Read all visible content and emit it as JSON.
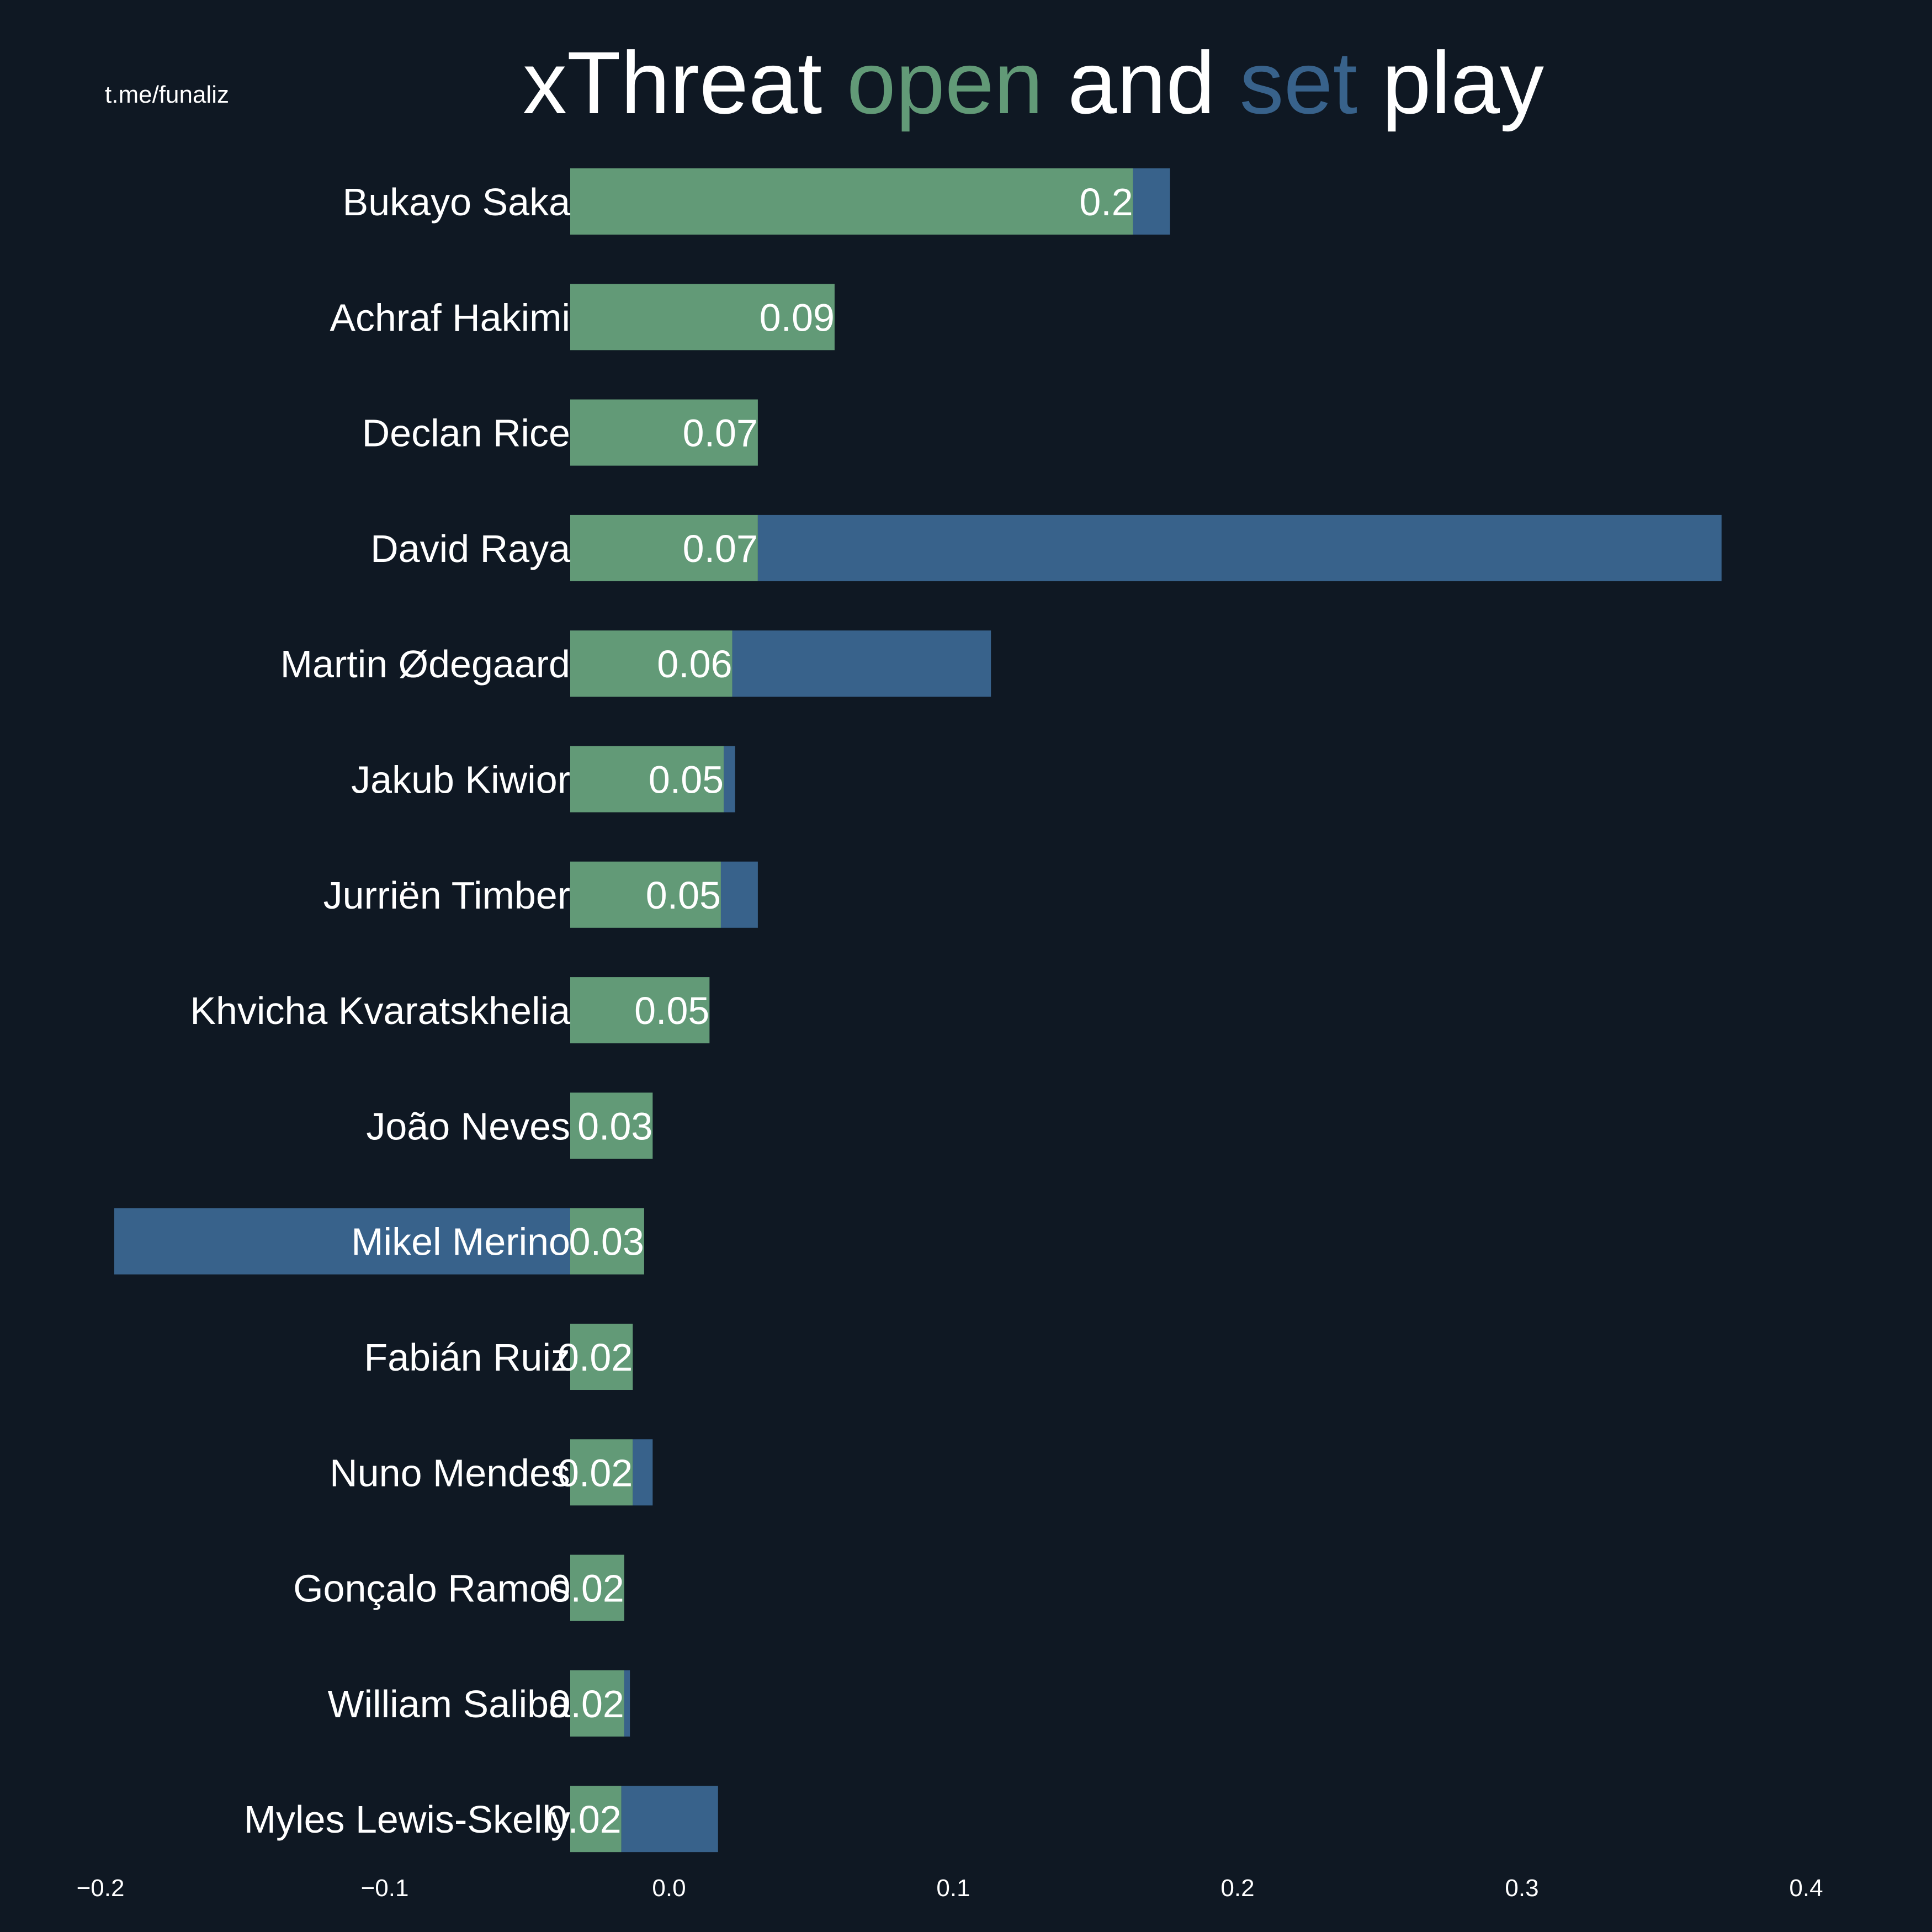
{
  "watermark": "t.me/funaliz",
  "title": {
    "parts": [
      {
        "text": "xThreat ",
        "color": "#ffffff"
      },
      {
        "text": "open",
        "color": "#629a77"
      },
      {
        "text": " and ",
        "color": "#ffffff"
      },
      {
        "text": "set",
        "color": "#38628b"
      },
      {
        "text": " play",
        "color": "#ffffff"
      }
    ]
  },
  "colors": {
    "background": "#0f1823",
    "open_play": "#629a77",
    "set_play": "#38628b",
    "text": "#ffffff"
  },
  "chart_data": {
    "type": "bar",
    "orientation": "horizontal",
    "stacked": true,
    "title": "xThreat open and set play",
    "categories": [
      "Bukayo Saka",
      "Achraf Hakimi",
      "Declan Rice",
      "David Raya",
      "Martin Ødegaard",
      "Jakub Kiwior",
      "Jurriën Timber",
      "Khvicha Kvaratskhelia",
      "João Neves",
      "Mikel Merino",
      "Fabián Ruiz",
      "Nuno Mendes",
      "Gonçalo Ramos",
      "William Saliba",
      "Myles Lewis-Skelly"
    ],
    "series": [
      {
        "name": "open",
        "values": [
          0.198,
          0.093,
          0.066,
          0.066,
          0.057,
          0.054,
          0.053,
          0.049,
          0.029,
          0.026,
          0.022,
          0.022,
          0.019,
          0.019,
          0.018
        ]
      },
      {
        "name": "set",
        "values": [
          0.013,
          0.0,
          0.0,
          0.339,
          0.091,
          0.004,
          0.013,
          0.0,
          0.0,
          -0.221,
          0.0,
          0.007,
          0.0,
          0.002,
          0.034
        ]
      }
    ],
    "data_labels": [
      "0.2",
      "0.09",
      "0.07",
      "0.07",
      "0.06",
      "0.05",
      "0.05",
      "0.05",
      "0.03",
      "0.03",
      "0.02",
      "0.02",
      "0.02",
      "0.02",
      "0.02"
    ],
    "xlim": [
      -0.2,
      0.4
    ],
    "xticks": [
      -0.2,
      -0.1,
      0.0,
      0.1,
      0.2,
      0.3,
      0.4
    ],
    "xtick_labels": [
      "−0.2",
      "−0.1",
      "0.0",
      "0.1",
      "0.2",
      "0.3",
      "0.4"
    ],
    "xlabel": "",
    "ylabel": "",
    "grid": false,
    "legend": "none"
  }
}
